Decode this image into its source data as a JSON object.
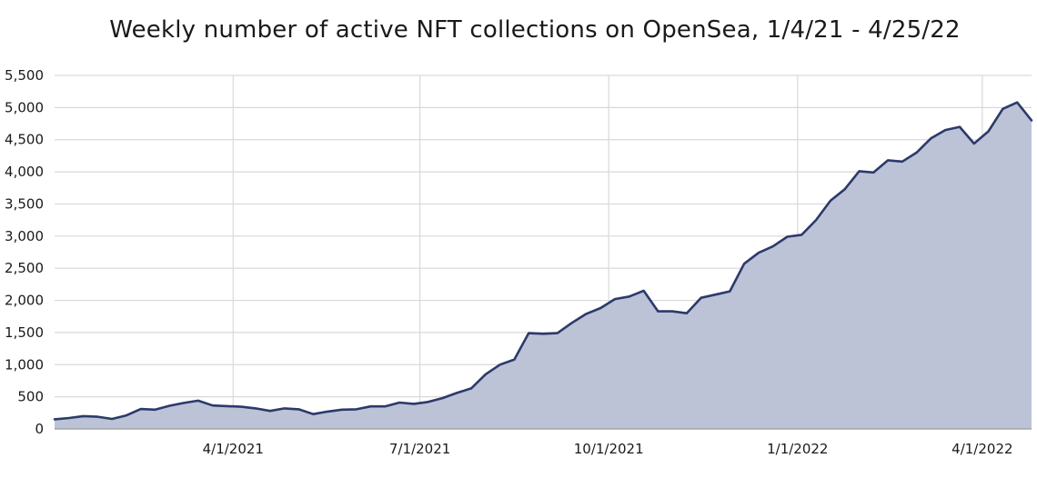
{
  "chart_data": {
    "type": "area",
    "title": "Weekly number of active NFT collections on OpenSea, 1/4/21 - 4/25/22",
    "xlabel": "",
    "ylabel": "",
    "ylim": [
      0,
      5500
    ],
    "yticks": [
      0,
      500,
      1000,
      1500,
      2000,
      2500,
      3000,
      3500,
      4000,
      4500,
      5000,
      5500
    ],
    "ytick_labels": [
      "0",
      "500",
      "1,000",
      "1,500",
      "2,000",
      "2,500",
      "3,000",
      "3,500",
      "4,000",
      "4,500",
      "5,000",
      "5,500"
    ],
    "xlim": [
      "2021-01-04",
      "2022-04-25"
    ],
    "xticks": [
      "2021-04-01",
      "2021-07-01",
      "2021-10-01",
      "2022-01-01",
      "2022-04-01"
    ],
    "xtick_labels": [
      "4/1/2021",
      "7/1/2021",
      "10/1/2021",
      "1/1/2022",
      "4/1/2022"
    ],
    "grid": true,
    "fill_color": "#bcc3d6",
    "line_color": "#2c3a6b",
    "x": [
      "2021-01-04",
      "2021-01-11",
      "2021-01-18",
      "2021-01-25",
      "2021-02-01",
      "2021-02-08",
      "2021-02-15",
      "2021-02-22",
      "2021-03-01",
      "2021-03-08",
      "2021-03-15",
      "2021-03-22",
      "2021-03-29",
      "2021-04-05",
      "2021-04-12",
      "2021-04-19",
      "2021-04-26",
      "2021-05-03",
      "2021-05-10",
      "2021-05-17",
      "2021-05-24",
      "2021-05-31",
      "2021-06-07",
      "2021-06-14",
      "2021-06-21",
      "2021-06-28",
      "2021-07-05",
      "2021-07-12",
      "2021-07-19",
      "2021-07-26",
      "2021-08-02",
      "2021-08-09",
      "2021-08-16",
      "2021-08-23",
      "2021-08-30",
      "2021-09-06",
      "2021-09-13",
      "2021-09-20",
      "2021-09-27",
      "2021-10-04",
      "2021-10-11",
      "2021-10-18",
      "2021-10-25",
      "2021-11-01",
      "2021-11-08",
      "2021-11-15",
      "2021-11-22",
      "2021-11-29",
      "2021-12-06",
      "2021-12-13",
      "2021-12-20",
      "2021-12-27",
      "2022-01-03",
      "2022-01-10",
      "2022-01-17",
      "2022-01-24",
      "2022-01-31",
      "2022-02-07",
      "2022-02-14",
      "2022-02-21",
      "2022-02-28",
      "2022-03-07",
      "2022-03-14",
      "2022-03-21",
      "2022-03-28",
      "2022-04-04",
      "2022-04-11",
      "2022-04-18",
      "2022-04-25"
    ],
    "values": [
      150,
      170,
      200,
      190,
      155,
      210,
      310,
      300,
      360,
      405,
      440,
      365,
      355,
      345,
      320,
      280,
      320,
      305,
      230,
      270,
      300,
      305,
      350,
      350,
      410,
      390,
      420,
      480,
      560,
      630,
      850,
      1000,
      1080,
      1490,
      1480,
      1490,
      1650,
      1790,
      1880,
      2020,
      2060,
      2150,
      1830,
      1830,
      1800,
      2040,
      2090,
      2140,
      2570,
      2740,
      2840,
      2990,
      3020,
      3250,
      3550,
      3730,
      4010,
      3990,
      4180,
      4160,
      4300,
      4520,
      4650,
      4700,
      4440,
      4630,
      4980,
      5080,
      4800
    ]
  }
}
